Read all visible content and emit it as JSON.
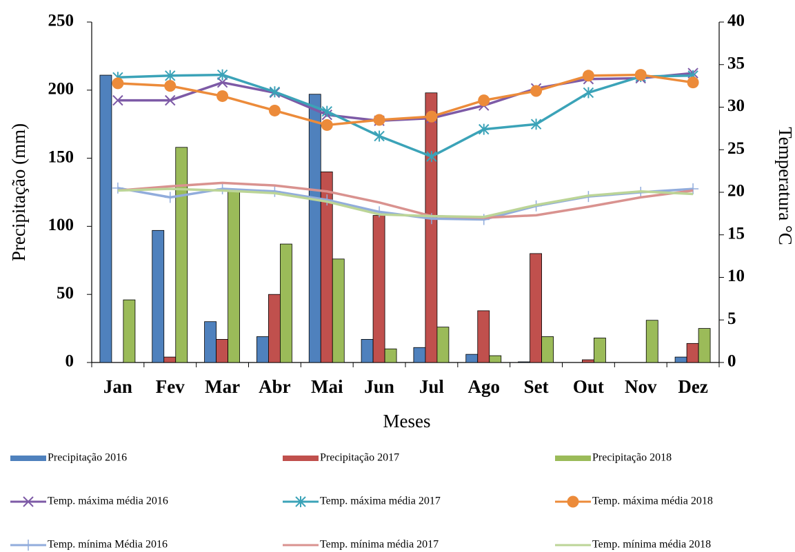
{
  "chart_data": {
    "type": "bar",
    "categories": [
      "Jan",
      "Fev",
      "Mar",
      "Abr",
      "Mai",
      "Jun",
      "Jul",
      "Ago",
      "Set",
      "Out",
      "Nov",
      "Dez"
    ],
    "x_label": "Meses",
    "y_label": "Precipitação (mm)",
    "y2_label": "Temperatura °C",
    "ylim": [
      0,
      250
    ],
    "yticks": [
      0,
      50,
      100,
      150,
      200,
      250
    ],
    "y2lim": [
      0,
      40
    ],
    "y2ticks": [
      0,
      5,
      10,
      15,
      20,
      25,
      30,
      35,
      40
    ],
    "series": [
      {
        "name": "Precipitação 2016",
        "type": "bar",
        "color": "#4f81bd",
        "values": [
          211,
          97,
          30,
          19,
          197,
          17,
          11,
          6,
          0.5,
          0,
          0,
          4
        ]
      },
      {
        "name": "Precipitação 2017",
        "type": "bar",
        "color": "#c0504d",
        "values": [
          0,
          4,
          17,
          50,
          140,
          108,
          198,
          38,
          80,
          2,
          0,
          14
        ]
      },
      {
        "name": "Precipitação 2018",
        "type": "bar",
        "color": "#9bbb59",
        "values": [
          46,
          158,
          127,
          87,
          76,
          10,
          26,
          5,
          19,
          18,
          31,
          25
        ]
      },
      {
        "name": "Temp. máxima média 2016",
        "type": "line",
        "axis": "y2",
        "marker": "x",
        "color": "#7d5aa6",
        "values": [
          30.8,
          30.8,
          32.9,
          31.7,
          29.1,
          28.4,
          28.7,
          30.2,
          32.2,
          33.3,
          33.4,
          34.0
        ]
      },
      {
        "name": "Temp. máxima média 2017",
        "type": "line",
        "axis": "y2",
        "marker": "asterisk",
        "color": "#3ba3b8",
        "values": [
          33.5,
          33.7,
          33.8,
          31.8,
          29.5,
          26.6,
          24.2,
          27.4,
          28.0,
          31.7,
          33.6,
          33.7
        ]
      },
      {
        "name": "Temp. máxima média 2018",
        "type": "line",
        "axis": "y2",
        "marker": "circle",
        "color": "#ec8b3a",
        "values": [
          32.8,
          32.5,
          31.3,
          29.6,
          27.9,
          28.5,
          28.9,
          30.8,
          31.9,
          33.7,
          33.8,
          32.9
        ]
      },
      {
        "name": "Temp. mínima Média 2016",
        "type": "line",
        "axis": "y2",
        "marker": "plus",
        "color": "#91acdc",
        "values": [
          20.5,
          19.4,
          20.4,
          20.1,
          19.1,
          17.7,
          16.9,
          16.8,
          18.4,
          19.5,
          20.0,
          20.4
        ]
      },
      {
        "name": "Temp. mínima média 2017",
        "type": "line",
        "axis": "y2",
        "marker": "none",
        "color": "#d9928f",
        "values": [
          20.2,
          20.7,
          21.1,
          20.8,
          20.1,
          18.8,
          17.2,
          17.0,
          17.3,
          18.3,
          19.4,
          20.2
        ]
      },
      {
        "name": "Temp. mínima média 2018",
        "type": "line",
        "axis": "y2",
        "marker": "none",
        "color": "#bcd597",
        "values": [
          20.2,
          20.4,
          20.2,
          19.9,
          18.9,
          17.4,
          17.2,
          17.1,
          18.5,
          19.6,
          20.1,
          19.8
        ]
      }
    ]
  }
}
